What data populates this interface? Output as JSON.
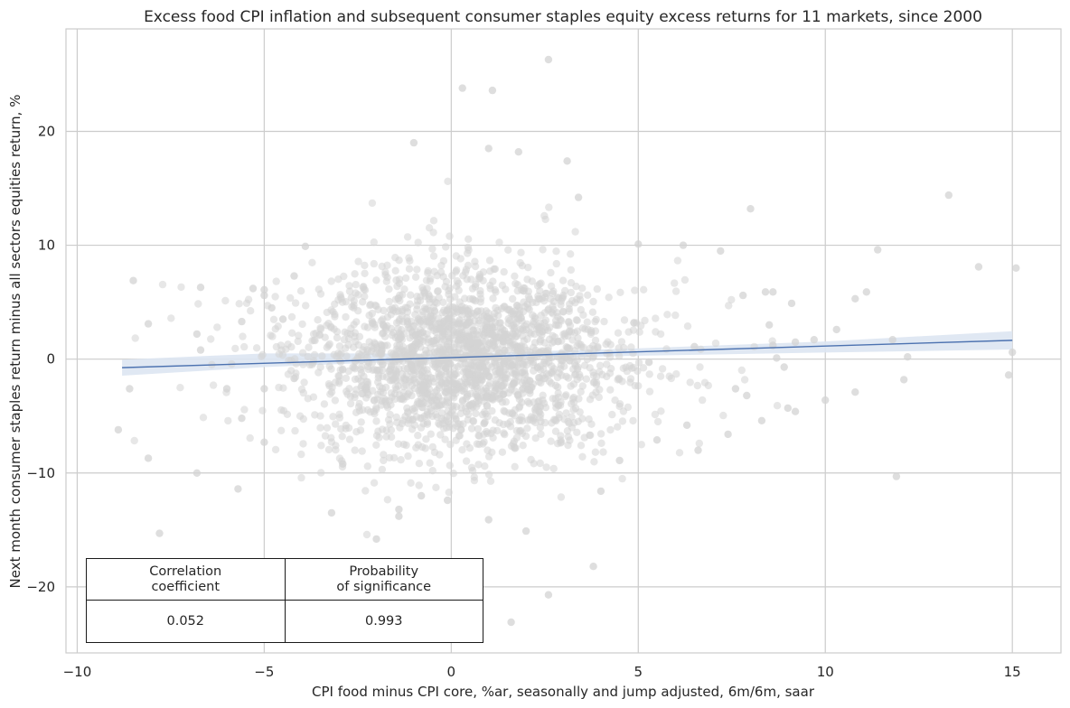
{
  "chart_data": {
    "type": "scatter",
    "title": "Excess food CPI inflation and subsequent consumer staples equity excess returns for 11 markets, since 2000",
    "xlabel": "CPI food minus CPI core, %ar, seasonally and jump adjusted, 6m/6m, saar",
    "ylabel": "Next month consumer staples return minus all sectors equities return, %",
    "xlim": [
      -10.3,
      16.3
    ],
    "ylim": [
      -25.8,
      29.0
    ],
    "xticks": [
      -10,
      -5,
      0,
      5,
      10,
      15
    ],
    "yticks": [
      -20,
      -10,
      0,
      10,
      20
    ],
    "xtick_labels": [
      "−10",
      "−5",
      "0",
      "5",
      "10",
      "15"
    ],
    "ytick_labels": [
      "−20",
      "−10",
      "0",
      "10",
      "20"
    ],
    "grid": true,
    "point_color": "#d3d3d3",
    "line_color": "#4c72b0",
    "band_color": "#dde5f2",
    "regression": {
      "x": [
        -8.8,
        15.0
      ],
      "y": [
        -0.75,
        1.65
      ]
    },
    "confidence_band": {
      "x": [
        -8.8,
        -5,
        -2,
        0,
        2,
        5,
        10,
        15
      ],
      "lower": [
        -1.45,
        -0.7,
        -0.3,
        -0.08,
        0.12,
        0.3,
        0.58,
        0.85
      ],
      "upper": [
        -0.05,
        0.5,
        0.5,
        0.42,
        0.66,
        0.95,
        1.55,
        2.45
      ]
    },
    "annotated_points": [
      [
        -8.9,
        -6.2
      ],
      [
        -8.5,
        6.9
      ],
      [
        -8.6,
        -2.6
      ],
      [
        -8.1,
        -8.7
      ],
      [
        -8.1,
        3.1
      ],
      [
        -7.8,
        -15.3
      ],
      [
        -6.7,
        6.3
      ],
      [
        -6.8,
        -10.0
      ],
      [
        -6.8,
        2.2
      ],
      [
        -6.7,
        0.8
      ],
      [
        -6.0,
        -2.6
      ],
      [
        -5.7,
        -11.4
      ],
      [
        -5.6,
        -5.2
      ],
      [
        -5.6,
        3.3
      ],
      [
        -5.3,
        6.2
      ],
      [
        -5.0,
        6.1
      ],
      [
        -5.0,
        5.6
      ],
      [
        -5.0,
        -7.3
      ],
      [
        -5.0,
        -2.6
      ],
      [
        -4.8,
        4.5
      ],
      [
        -4.5,
        3.5
      ],
      [
        -4.2,
        7.3
      ],
      [
        -3.9,
        9.9
      ],
      [
        -4.2,
        -1.7
      ],
      [
        -3.2,
        -13.5
      ],
      [
        -2.9,
        -9.2
      ],
      [
        -2.0,
        -15.8
      ],
      [
        -1.4,
        -13.2
      ],
      [
        -1.4,
        -13.8
      ],
      [
        -0.8,
        -12.0
      ],
      [
        -0.1,
        -12.4
      ],
      [
        0.3,
        23.8
      ],
      [
        1.1,
        23.6
      ],
      [
        2.6,
        26.3
      ],
      [
        -1.0,
        19.0
      ],
      [
        1.0,
        18.5
      ],
      [
        3.1,
        17.4
      ],
      [
        3.4,
        14.2
      ],
      [
        1.8,
        18.2
      ],
      [
        2.6,
        -20.7
      ],
      [
        1.6,
        -23.1
      ],
      [
        3.8,
        -18.2
      ],
      [
        2.0,
        -15.1
      ],
      [
        1.0,
        -14.1
      ],
      [
        4.0,
        -11.6
      ],
      [
        5.0,
        10.1
      ],
      [
        6.2,
        10.0
      ],
      [
        7.2,
        9.5
      ],
      [
        8.0,
        13.2
      ],
      [
        11.4,
        9.6
      ],
      [
        13.3,
        14.4
      ],
      [
        14.1,
        8.1
      ],
      [
        15.1,
        8.0
      ],
      [
        11.1,
        5.9
      ],
      [
        10.8,
        5.3
      ],
      [
        9.1,
        4.9
      ],
      [
        10.3,
        2.6
      ],
      [
        11.8,
        1.7
      ],
      [
        12.2,
        0.2
      ],
      [
        12.1,
        -1.8
      ],
      [
        10.0,
        -3.6
      ],
      [
        10.8,
        -2.9
      ],
      [
        11.9,
        -10.3
      ],
      [
        14.9,
        -1.4
      ],
      [
        15.0,
        0.6
      ],
      [
        9.2,
        -4.6
      ],
      [
        8.3,
        -5.4
      ],
      [
        7.4,
        -6.6
      ],
      [
        6.6,
        -8.0
      ],
      [
        8.6,
        5.9
      ],
      [
        8.4,
        5.9
      ],
      [
        8.7,
        0.1
      ],
      [
        9.2,
        1.5
      ],
      [
        9.7,
        1.7
      ],
      [
        8.9,
        -0.7
      ],
      [
        7.9,
        -3.2
      ],
      [
        6.3,
        -5.8
      ],
      [
        5.5,
        -7.1
      ],
      [
        4.5,
        -8.9
      ],
      [
        6.5,
        1.1
      ],
      [
        7.8,
        5.6
      ],
      [
        8.5,
        3.0
      ],
      [
        7.6,
        -2.6
      ],
      [
        9.0,
        -4.3
      ],
      [
        8.6,
        1.2
      ]
    ],
    "cloud": {
      "count": 2200,
      "mean_x": 0.3,
      "sd_x": 1.9,
      "mean_y": 0.0,
      "sd_y": 4.1,
      "sd_x_tail": 3.1
    },
    "table": {
      "headers": [
        "Correlation\ncoefficient",
        "Probability\nof significance"
      ],
      "values": [
        "0.052",
        "0.993"
      ]
    }
  }
}
